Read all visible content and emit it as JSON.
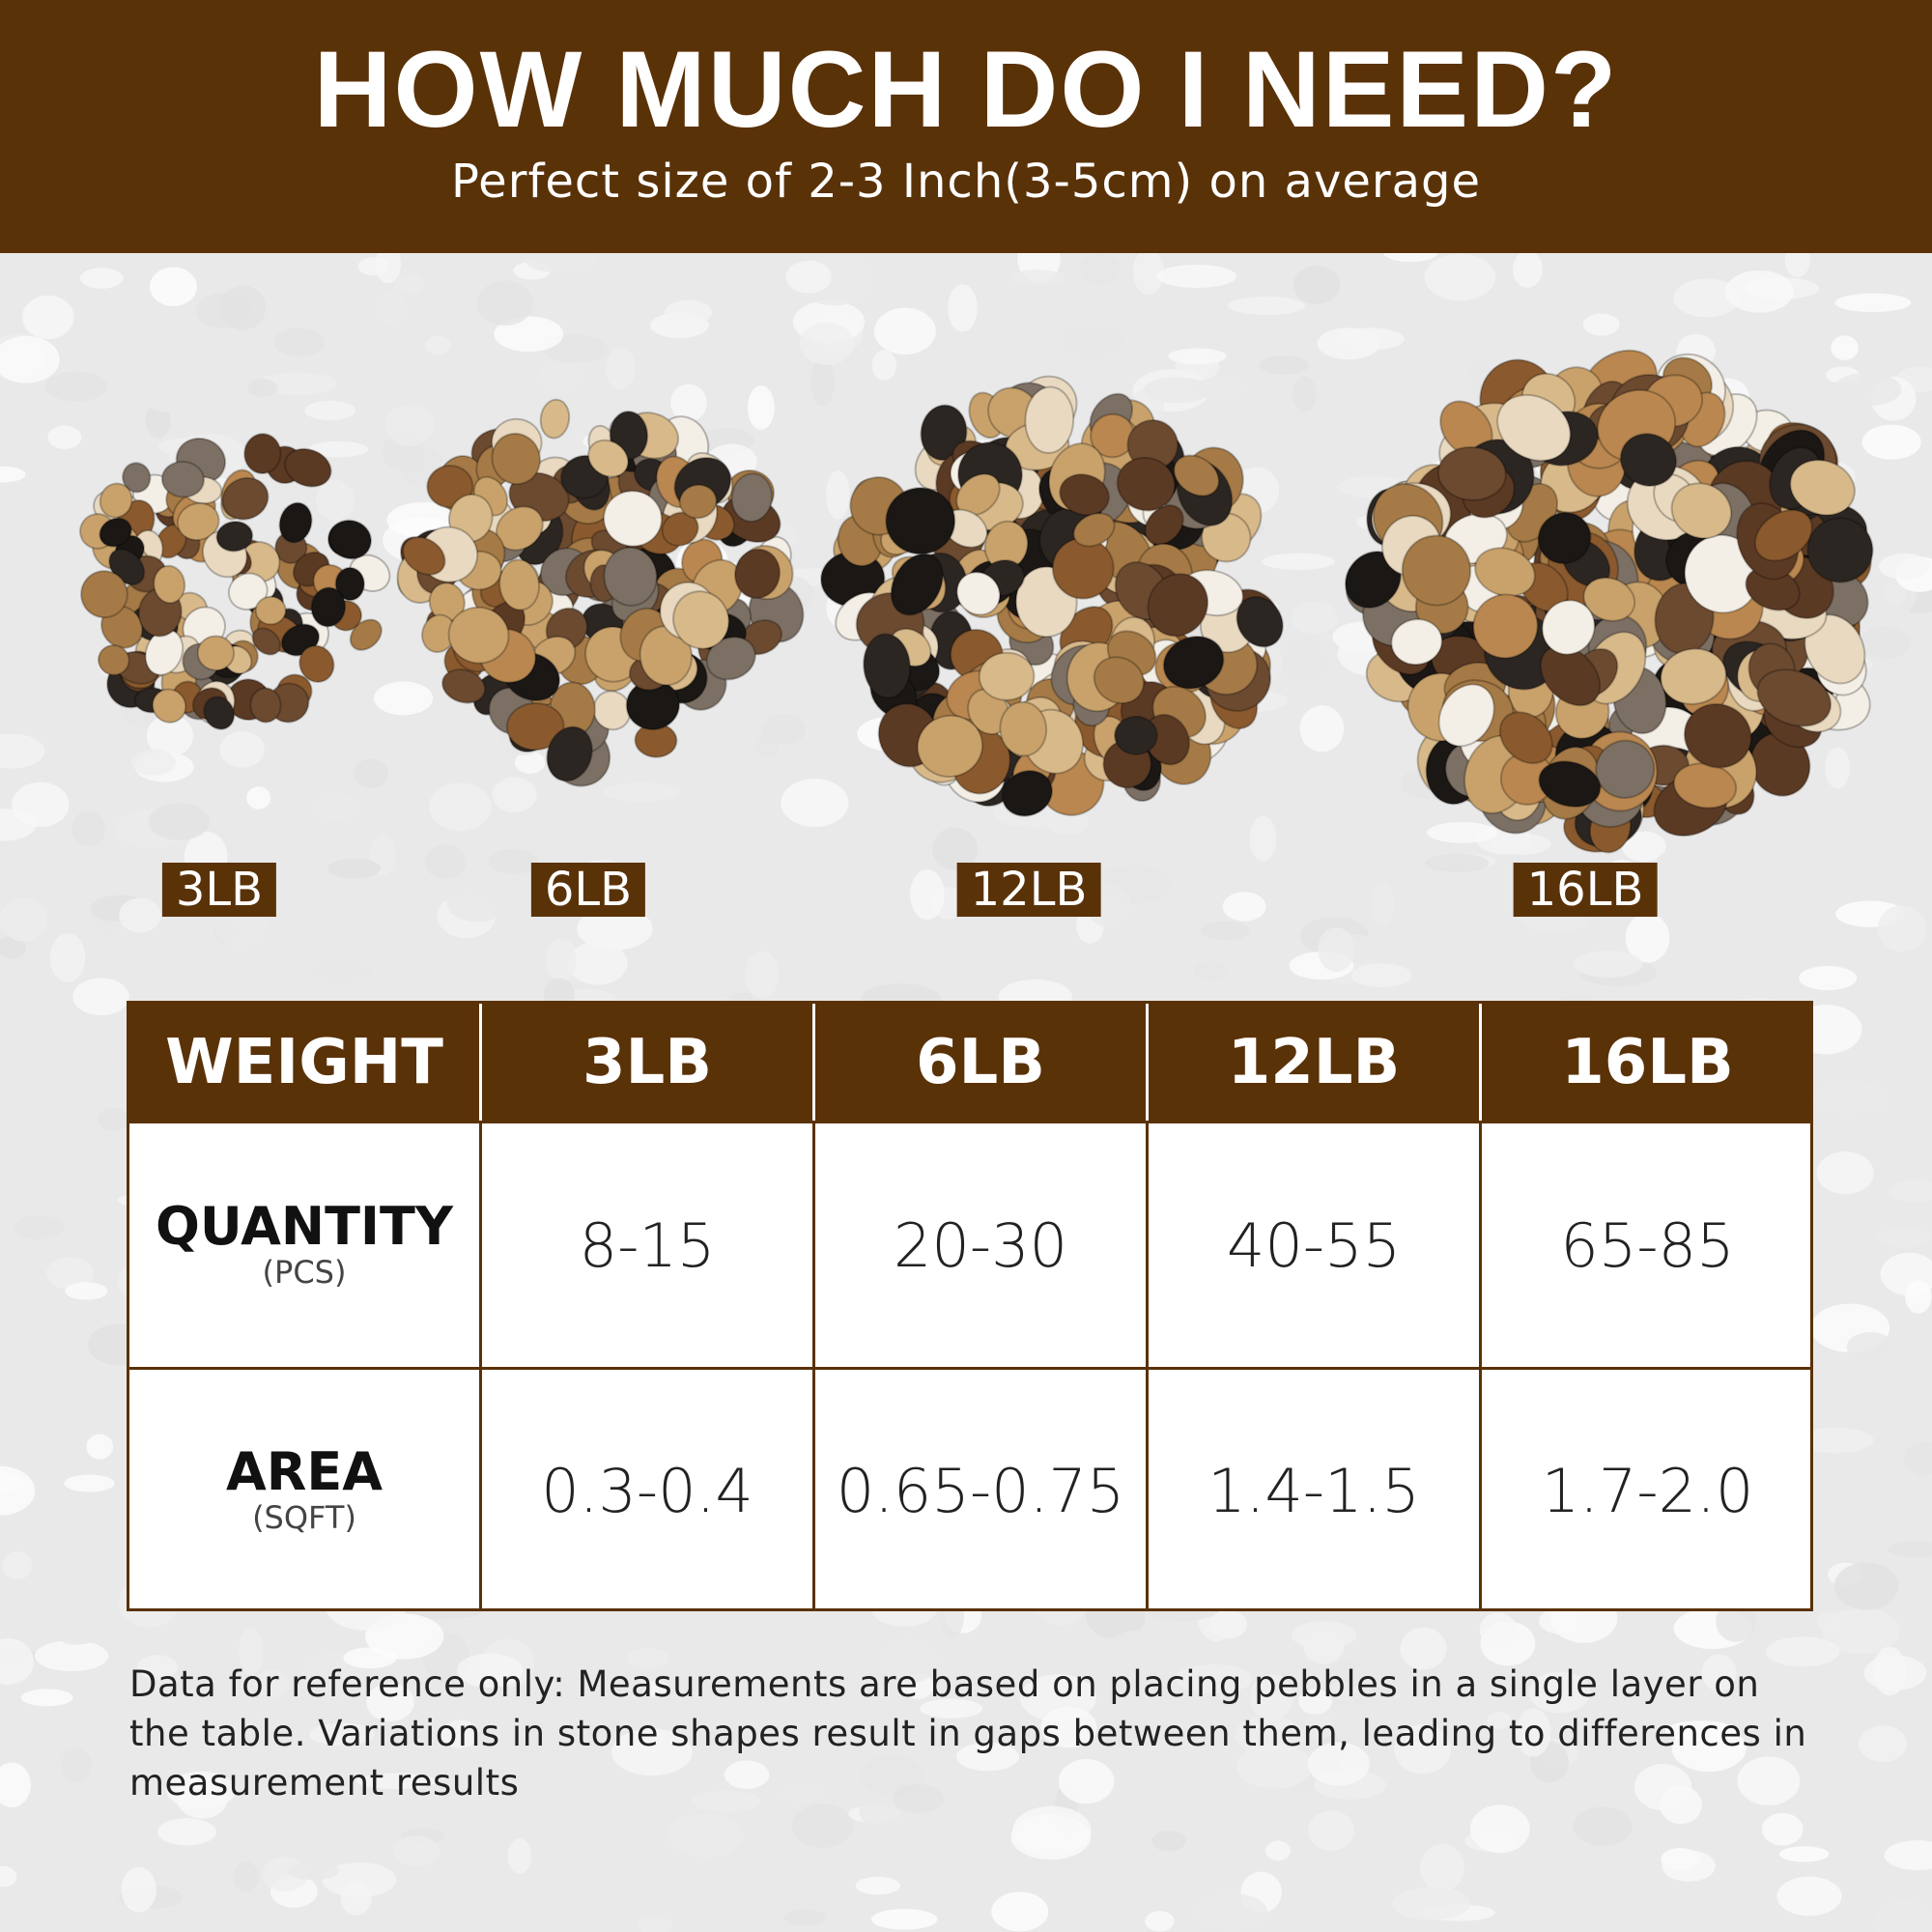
{
  "header": {
    "title": "HOW MUCH DO I NEED?",
    "subtitle": "Perfect size of 2-3 Inch(3-5cm) on average"
  },
  "products": [
    {
      "label": "3LB"
    },
    {
      "label": "6LB"
    },
    {
      "label": "12LB"
    },
    {
      "label": "16LB"
    }
  ],
  "table": {
    "header": [
      "WEIGHT",
      "3LB",
      "6LB",
      "12LB",
      "16LB"
    ],
    "rows": [
      {
        "label": "QUANTITY",
        "unit": "(PCS)",
        "values": [
          "8-15",
          "20-30",
          "40-55",
          "65-85"
        ]
      },
      {
        "label": "AREA",
        "unit": "(SQFT)",
        "values": [
          "0.3-0.4",
          "0.65-0.75",
          "1.4-1.5",
          "1.7-2.0"
        ]
      }
    ]
  },
  "note": "Data for reference only: Measurements are based on placing pebbles in a single layer on the table. Variations in stone shapes result in gaps between them, leading to differences in measurement results"
}
